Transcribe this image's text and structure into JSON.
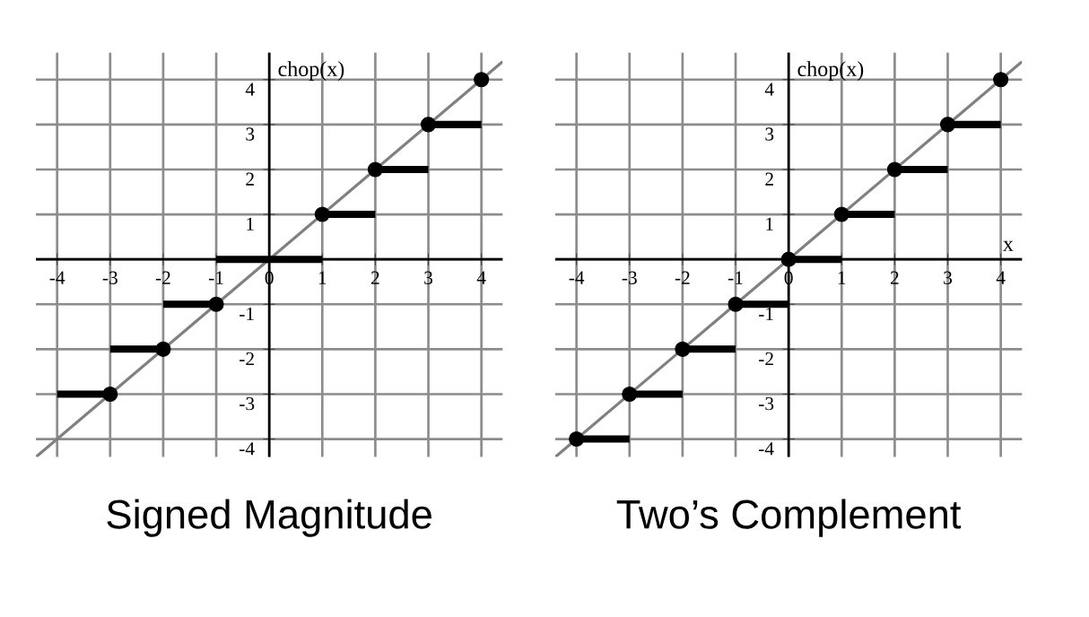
{
  "chart_data": [
    {
      "type": "line",
      "title": "Signed Magnitude",
      "ylabel": "chop(x)",
      "xlim": [
        -4.4,
        4.4
      ],
      "ylim": [
        -4.4,
        4.6
      ],
      "grid": true,
      "xticks": [
        -4,
        -3,
        -2,
        -1,
        0,
        1,
        2,
        3,
        4
      ],
      "yticks": [
        -4,
        -3,
        -2,
        -1,
        {
          "value": 0,
          "label": null
        },
        1,
        2,
        3,
        4
      ],
      "series": [
        {
          "type": "line",
          "color": "#808080",
          "marker": "none",
          "x": [
            -4.4,
            4.4
          ],
          "values": [
            -4.4,
            4.4
          ]
        },
        {
          "type": "step",
          "color": "#000000",
          "marker": "none",
          "x": [
            -4,
            -3,
            -2,
            -1,
            0,
            1,
            2,
            3,
            4
          ],
          "values": [
            -3,
            -2,
            -1,
            0,
            0,
            1,
            2,
            3,
            3
          ]
        },
        {
          "type": "scatter",
          "color": "#000000",
          "marker": "circle",
          "x": [
            -3,
            -2,
            -1,
            1,
            2,
            3,
            4
          ],
          "values": [
            -3,
            -2,
            -1,
            1,
            2,
            3,
            4
          ]
        }
      ]
    },
    {
      "type": "line",
      "title": "Two’s Complement",
      "ylabel": "chop(x)",
      "xlabel": "x",
      "xlim": [
        -4.4,
        4.4
      ],
      "ylim": [
        -4.4,
        4.6
      ],
      "grid": true,
      "xticks": [
        -4,
        -3,
        -2,
        -1,
        0,
        1,
        2,
        3,
        4
      ],
      "yticks": [
        -4,
        -3,
        -2,
        -1,
        {
          "value": 0,
          "label": null
        },
        1,
        2,
        3,
        4
      ],
      "series": [
        {
          "type": "line",
          "color": "#808080",
          "marker": "none",
          "x": [
            -4.4,
            4.4
          ],
          "values": [
            -4.4,
            4.4
          ]
        },
        {
          "type": "step",
          "color": "#000000",
          "marker": "none",
          "x": [
            -4,
            -3,
            -2,
            -1,
            0,
            1,
            2,
            3,
            4
          ],
          "values": [
            -4,
            -3,
            -2,
            -1,
            0,
            1,
            2,
            3,
            3
          ]
        },
        {
          "type": "scatter",
          "color": "#000000",
          "marker": "circle",
          "x": [
            -4,
            -3,
            -2,
            -1,
            0,
            1,
            2,
            3,
            4
          ],
          "values": [
            -4,
            -3,
            -2,
            -1,
            0,
            1,
            2,
            3,
            4
          ]
        }
      ]
    }
  ]
}
